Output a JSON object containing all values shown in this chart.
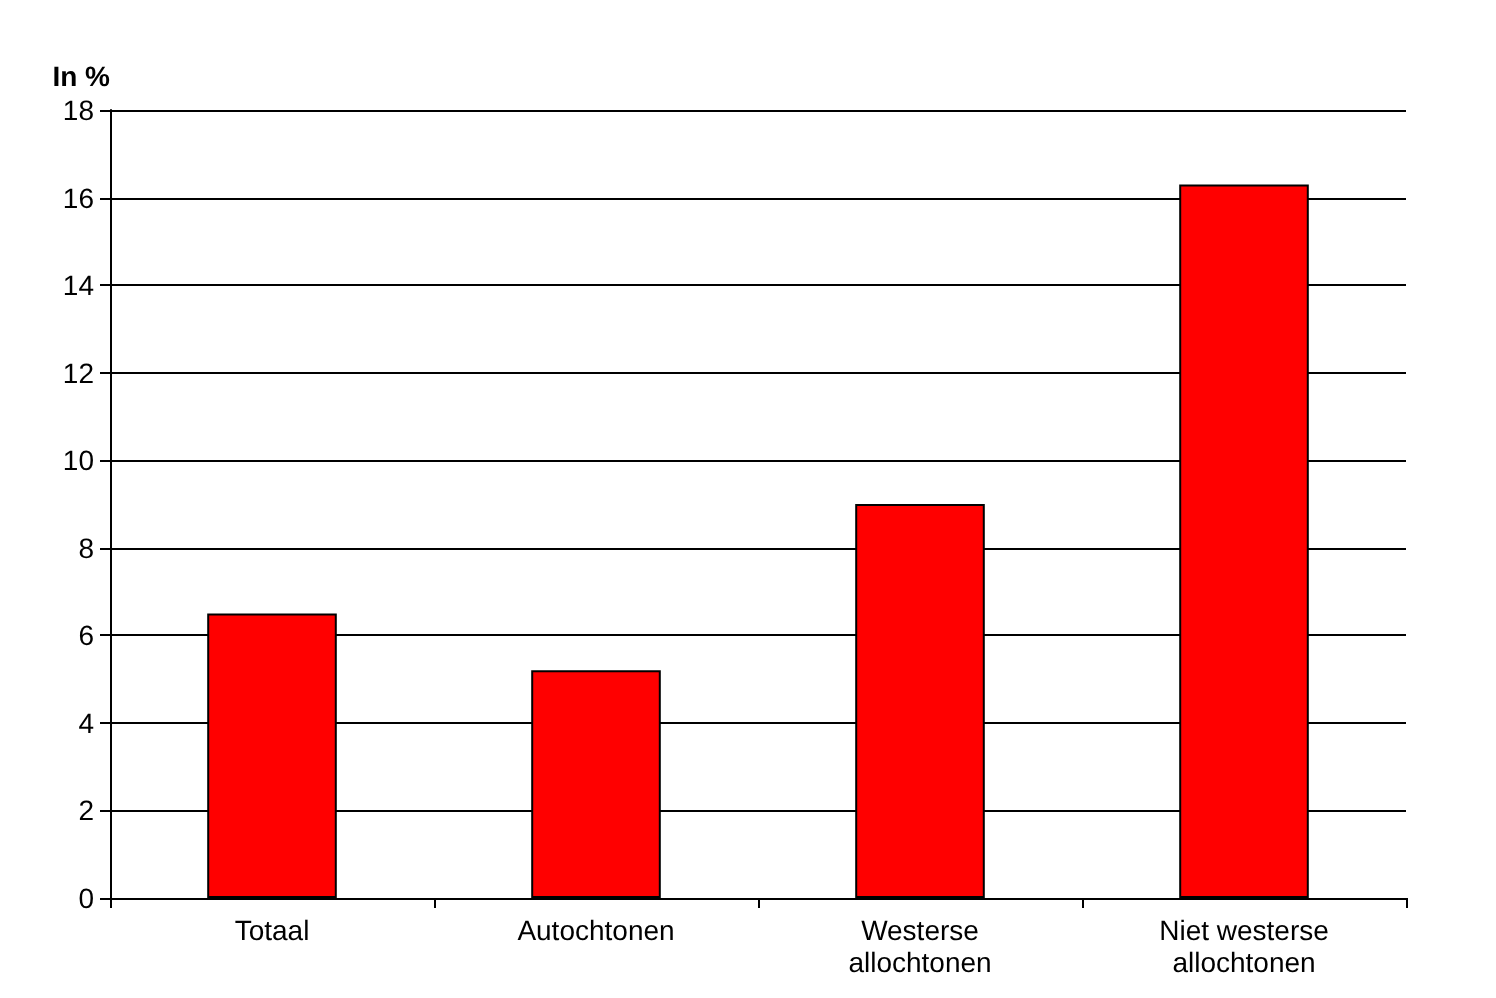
{
  "chart_data": {
    "type": "bar",
    "ylabel": "In %",
    "categories": [
      "Totaal",
      "Autochtonen",
      "Westerse allochtonen",
      "Niet westerse allochtonen"
    ],
    "values": [
      6.5,
      5.2,
      9.0,
      16.3
    ],
    "color": "#ff0000",
    "ylim": [
      0,
      18
    ],
    "yticks": [
      0,
      2,
      4,
      6,
      8,
      10,
      12,
      14,
      16,
      18
    ],
    "grid": "y"
  }
}
